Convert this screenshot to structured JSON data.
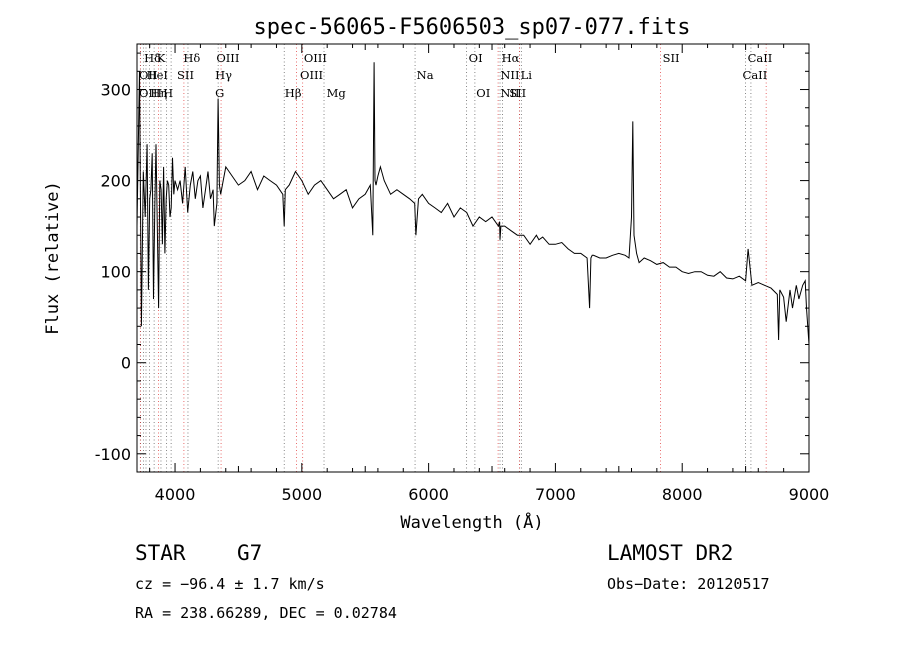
{
  "chart_data": {
    "type": "line",
    "title": "spec-56065-F5606503_sp07-077.fits",
    "xlabel": "Wavelength (Å)",
    "ylabel": "Flux (relative)",
    "xlim": [
      3700,
      9000
    ],
    "ylim": [
      -120,
      350
    ],
    "x_ticks": [
      4000,
      5000,
      6000,
      7000,
      8000,
      9000
    ],
    "y_ticks": [
      -100,
      0,
      100,
      200,
      300
    ],
    "grid": false,
    "series": [
      {
        "color": "#000000",
        "x": [
          3700,
          3720,
          3735,
          3750,
          3765,
          3780,
          3790,
          3800,
          3810,
          3820,
          3830,
          3840,
          3850,
          3860,
          3870,
          3880,
          3890,
          3900,
          3910,
          3920,
          3930,
          3940,
          3950,
          3960,
          3970,
          3980,
          3990,
          4000,
          4020,
          4040,
          4060,
          4080,
          4100,
          4120,
          4140,
          4160,
          4180,
          4200,
          4220,
          4240,
          4260,
          4280,
          4300,
          4310,
          4330,
          4340,
          4350,
          4360,
          4380,
          4400,
          4450,
          4500,
          4550,
          4600,
          4650,
          4700,
          4750,
          4800,
          4850,
          4861,
          4870,
          4900,
          4950,
          5000,
          5050,
          5100,
          5150,
          5200,
          5250,
          5300,
          5350,
          5400,
          5450,
          5500,
          5540,
          5560,
          5570,
          5577,
          5585,
          5600,
          5620,
          5650,
          5700,
          5750,
          5800,
          5850,
          5890,
          5900,
          5920,
          5950,
          6000,
          6050,
          6100,
          6150,
          6200,
          6250,
          6300,
          6350,
          6400,
          6450,
          6500,
          6550,
          6560,
          6563,
          6570,
          6600,
          6650,
          6700,
          6750,
          6800,
          6850,
          6870,
          6900,
          6950,
          7000,
          7050,
          7100,
          7150,
          7200,
          7250,
          7270,
          7280,
          7290,
          7300,
          7350,
          7400,
          7450,
          7500,
          7550,
          7580,
          7600,
          7610,
          7620,
          7640,
          7660,
          7700,
          7750,
          7800,
          7850,
          7900,
          7950,
          8000,
          8050,
          8100,
          8150,
          8200,
          8250,
          8300,
          8350,
          8400,
          8450,
          8500,
          8520,
          8550,
          8600,
          8650,
          8700,
          8750,
          8760,
          8770,
          8800,
          8820,
          8850,
          8870,
          8900,
          8920,
          8950,
          8970,
          8980,
          9000
        ],
        "values": [
          150,
          320,
          40,
          210,
          160,
          240,
          80,
          180,
          190,
          230,
          70,
          170,
          240,
          150,
          60,
          200,
          190,
          130,
          215,
          120,
          180,
          200,
          195,
          160,
          170,
          225,
          185,
          200,
          190,
          200,
          175,
          215,
          165,
          195,
          210,
          180,
          200,
          205,
          170,
          190,
          210,
          180,
          190,
          150,
          175,
          290,
          195,
          185,
          200,
          215,
          205,
          195,
          200,
          210,
          190,
          205,
          200,
          195,
          185,
          150,
          190,
          195,
          210,
          200,
          185,
          195,
          200,
          190,
          180,
          185,
          190,
          170,
          180,
          185,
          195,
          140,
          330,
          200,
          195,
          205,
          215,
          200,
          185,
          190,
          185,
          180,
          175,
          140,
          180,
          185,
          175,
          170,
          165,
          175,
          160,
          170,
          165,
          150,
          160,
          155,
          160,
          150,
          155,
          135,
          150,
          150,
          145,
          140,
          140,
          130,
          140,
          135,
          138,
          130,
          130,
          132,
          125,
          120,
          120,
          115,
          60,
          115,
          118,
          118,
          115,
          115,
          118,
          120,
          118,
          115,
          160,
          265,
          140,
          120,
          110,
          115,
          112,
          108,
          110,
          105,
          105,
          100,
          98,
          100,
          100,
          96,
          95,
          100,
          93,
          92,
          95,
          90,
          125,
          85,
          88,
          85,
          82,
          75,
          25,
          80,
          72,
          45,
          80,
          60,
          85,
          70,
          85,
          90,
          60,
          20
        ]
      }
    ],
    "annotations": [
      {
        "label": "Hδ",
        "x": 3740
      },
      {
        "label": "K",
        "x": 3840
      },
      {
        "label": "Hδ",
        "x": 4050
      },
      {
        "label": "OII",
        "x": 3700
      },
      {
        "label": "HeI",
        "x": 3760
      },
      {
        "label": "SII",
        "x": 4000
      },
      {
        "label": "OIII",
        "x": 3700
      },
      {
        "label": "Hη",
        "x": 3790
      },
      {
        "label": "H",
        "x": 3890
      },
      {
        "label": "OIII",
        "x": 4310
      },
      {
        "label": "Hγ",
        "x": 4300
      },
      {
        "label": "G",
        "x": 4300
      },
      {
        "label": "OIII",
        "x": 5000
      },
      {
        "label": "OIII",
        "x": 4970
      },
      {
        "label": "Hβ",
        "x": 4850
      },
      {
        "label": "Mg",
        "x": 5180
      },
      {
        "label": "Na",
        "x": 5890
      },
      {
        "label": "OI",
        "x": 6300
      },
      {
        "label": "OI",
        "x": 6360
      },
      {
        "label": "Hα",
        "x": 6560
      },
      {
        "label": "NII",
        "x": 6550
      },
      {
        "label": "NII",
        "x": 6550
      },
      {
        "label": "SII",
        "x": 6620
      },
      {
        "label": "Li",
        "x": 6710
      },
      {
        "label": "SII",
        "x": 7830
      },
      {
        "label": "CaII",
        "x": 8500
      },
      {
        "label": "CaII",
        "x": 8460
      }
    ],
    "lines_black": [
      3728,
      3750,
      3771,
      3798,
      3835,
      3889,
      3934,
      3969,
      4102,
      4340,
      4861,
      5175,
      5893,
      6300,
      6365,
      6563,
      6583,
      6716,
      6731,
      8498,
      8542
    ],
    "lines_red": [
      3726,
      3870,
      4070,
      4363,
      4959,
      5007,
      6548,
      6716,
      7830,
      8662
    ]
  },
  "info": {
    "object_class": "STAR",
    "subclass": "G7",
    "release": "LAMOST DR2",
    "cz": "cz = −96.4 ± 1.7 km/s",
    "obs_date": "Obs−Date: 20120517",
    "coords": "RA = 238.66289, DEC =   0.02784"
  }
}
